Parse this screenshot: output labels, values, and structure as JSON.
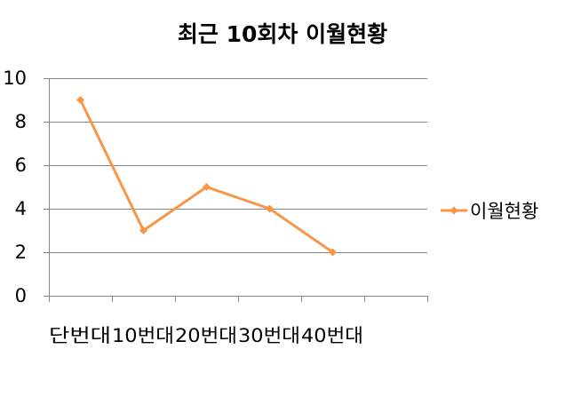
{
  "chart_data": {
    "type": "line",
    "title": "최근 10회차 이월현황",
    "categories": [
      "단번대",
      "10번대",
      "20번대",
      "30번대",
      "40번대"
    ],
    "series": [
      {
        "name": "이월현황",
        "values": [
          9,
          3,
          5,
          4,
          2
        ],
        "color": "#F79646",
        "marker": "diamond"
      }
    ],
    "y_ticks": [
      "0",
      "2",
      "4",
      "6",
      "8",
      "10"
    ],
    "ylim": [
      0,
      10
    ],
    "y_step": 2,
    "x_divisions": 6,
    "grid": true,
    "grid_color": "#868686",
    "legend": "right",
    "xlabel": "",
    "ylabel": ""
  }
}
